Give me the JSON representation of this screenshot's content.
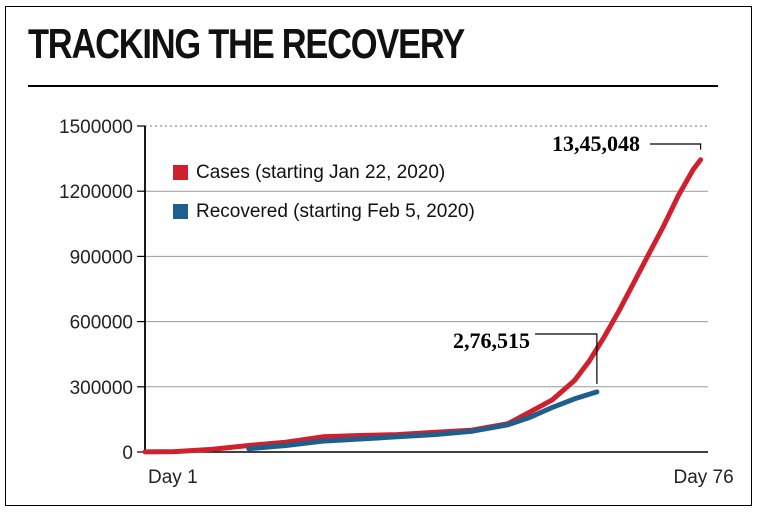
{
  "header": {
    "title": "TRACKING THE RECOVERY"
  },
  "colors": {
    "cases": "#d0202e",
    "recovered": "#1f5f8b",
    "grid": "#9a9a9a",
    "axis": "#000000"
  },
  "chart_data": {
    "type": "line",
    "title": "TRACKING THE RECOVERY",
    "xlabel": "",
    "ylabel": "",
    "x_tick_labels": [
      "Day 1",
      "Day 76"
    ],
    "ylim": [
      0,
      1500000
    ],
    "y_ticks": [
      0,
      300000,
      600000,
      900000,
      1200000,
      1500000
    ],
    "y_tick_labels": [
      "0",
      "300000",
      "600000",
      "900000",
      "1200000",
      "1500000"
    ],
    "grid": true,
    "legend_placement": "top-left",
    "series": [
      {
        "name": "Cases (starting Jan 22, 2020)",
        "color": "#d0202e",
        "x": [
          1,
          5,
          10,
          15,
          20,
          25,
          30,
          35,
          40,
          45,
          50,
          53,
          56,
          59,
          61,
          63,
          65,
          67,
          69,
          71,
          73,
          75,
          76
        ],
        "values": [
          500,
          2000,
          12000,
          30000,
          45000,
          70000,
          76000,
          80000,
          90000,
          100000,
          130000,
          185000,
          240000,
          330000,
          420000,
          530000,
          650000,
          780000,
          910000,
          1040000,
          1180000,
          1300000,
          1345048
        ]
      },
      {
        "name": "Recovered (starting Feb 5, 2020)",
        "color": "#1f5f8b",
        "x": [
          15,
          20,
          25,
          30,
          35,
          40,
          45,
          50,
          53,
          56,
          59,
          62
        ],
        "values": [
          15000,
          30000,
          50000,
          60000,
          70000,
          80000,
          95000,
          125000,
          160000,
          205000,
          245000,
          276515
        ]
      }
    ],
    "annotations": [
      {
        "text": "13,45,048",
        "series": "Cases (starting Jan 22, 2020)",
        "x": 76,
        "y": 1345048
      },
      {
        "text": "2,76,515",
        "series": "Recovered (starting Feb 5, 2020)",
        "x": 62,
        "y": 276515
      }
    ]
  }
}
